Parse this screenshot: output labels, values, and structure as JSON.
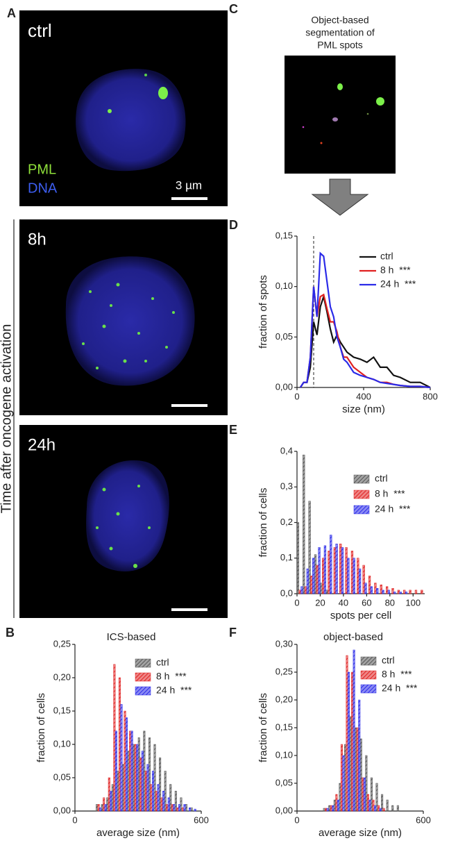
{
  "panel_letters": [
    "A",
    "B",
    "C",
    "D",
    "E",
    "F"
  ],
  "images": [
    {
      "label": "ctrl"
    },
    {
      "label": "8h"
    },
    {
      "label": "24h"
    }
  ],
  "stain_labels": [
    "PML",
    "DNA"
  ],
  "scale_bar": "3 µm",
  "side_label": "Time after oncogene activation",
  "segmentation_caption": [
    "Object-based",
    "segmentation of",
    "PML spots"
  ],
  "chart_data": [
    {
      "type": "line",
      "ylabel": "fraction of spots",
      "xlabel": "size (nm)",
      "x": [
        20,
        40,
        60,
        80,
        100,
        120,
        140,
        160,
        180,
        200,
        220,
        240,
        260,
        280,
        300,
        340,
        380,
        420,
        460,
        500,
        540,
        580,
        620,
        680,
        740,
        800
      ],
      "xlim": [
        0,
        800
      ],
      "xticks": [
        0,
        400,
        800
      ],
      "ylim": [
        0,
        0.15
      ],
      "yticks": [
        {
          "value": 0,
          "label": "0,00"
        },
        {
          "value": 0.05,
          "label": "0,05"
        },
        {
          "value": 0.1,
          "label": "0,10"
        },
        {
          "value": 0.15,
          "label": "0,15"
        }
      ],
      "reference_line_x": 100,
      "series": [
        {
          "name": "ctrl",
          "color": "#111111",
          "values": [
            0,
            0.005,
            0.005,
            0.02,
            0.065,
            0.052,
            0.08,
            0.09,
            0.075,
            0.058,
            0.045,
            0.052,
            0.045,
            0.04,
            0.035,
            0.03,
            0.028,
            0.025,
            0.03,
            0.02,
            0.02,
            0.012,
            0.01,
            0.005,
            0.005,
            0
          ]
        },
        {
          "name": "8 h  ***",
          "color": "#e02020",
          "values": [
            0,
            0.005,
            0.005,
            0.03,
            0.1,
            0.07,
            0.09,
            0.092,
            0.078,
            0.065,
            0.065,
            0.055,
            0.04,
            0.03,
            0.03,
            0.02,
            0.015,
            0.01,
            0.008,
            0.005,
            0.005,
            0.003,
            0.002,
            0.001,
            0.001,
            0
          ]
        },
        {
          "name": "24 h  ***",
          "color": "#2a2ae8",
          "values": [
            0,
            0.005,
            0.005,
            0.03,
            0.1,
            0.07,
            0.133,
            0.13,
            0.105,
            0.08,
            0.07,
            0.05,
            0.04,
            0.028,
            0.025,
            0.015,
            0.012,
            0.01,
            0.008,
            0.005,
            0.004,
            0.003,
            0.002,
            0.001,
            0.001,
            0
          ]
        }
      ]
    },
    {
      "type": "histogram",
      "ylabel": "fraction of cells",
      "xlabel": "spots per cell",
      "bins": [
        0,
        5,
        10,
        15,
        20,
        25,
        30,
        35,
        40,
        45,
        50,
        55,
        60,
        65,
        70,
        75,
        80,
        85,
        90,
        95,
        100,
        105,
        110
      ],
      "xlim": [
        0,
        110
      ],
      "xticks": [
        0,
        20,
        40,
        60,
        80,
        100
      ],
      "ylim": [
        0,
        0.4
      ],
      "yticks": [
        {
          "value": 0,
          "label": "0,0"
        },
        {
          "value": 0.1,
          "label": "0,1"
        },
        {
          "value": 0.2,
          "label": "0,2"
        },
        {
          "value": 0.3,
          "label": "0,3"
        },
        {
          "value": 0.4,
          "label": "0,4"
        }
      ],
      "series": [
        {
          "name": "ctrl",
          "color": "#555555",
          "values": [
            0.2,
            0.39,
            0.26,
            0.11,
            0.03,
            0.01,
            0,
            0,
            0,
            0,
            0,
            0,
            0,
            0,
            0,
            0,
            0,
            0,
            0,
            0,
            0,
            0
          ]
        },
        {
          "name": "8 h  ***",
          "color": "#e02020",
          "values": [
            0.01,
            0.02,
            0.05,
            0.08,
            0.1,
            0.12,
            0.13,
            0.14,
            0.13,
            0.12,
            0.1,
            0.08,
            0.05,
            0.03,
            0.025,
            0.02,
            0.015,
            0.01,
            0.01,
            0.01,
            0.01,
            0.01
          ]
        },
        {
          "name": "24 h  ***",
          "color": "#2a2ae8",
          "values": [
            0.02,
            0.07,
            0.1,
            0.13,
            0.135,
            0.165,
            0.14,
            0.13,
            0.1,
            0.1,
            0.07,
            0.03,
            0.02,
            0.015,
            0.01,
            0.01,
            0.005,
            0.005,
            0.005,
            0,
            0,
            0
          ]
        }
      ]
    },
    {
      "type": "histogram",
      "title": "ICS-based",
      "ylabel": "fraction of cells",
      "xlabel": "average size (nm)",
      "bins": [
        100,
        125,
        150,
        175,
        200,
        225,
        250,
        275,
        300,
        325,
        350,
        375,
        400,
        425,
        450,
        475,
        500,
        525,
        550,
        575,
        600
      ],
      "xlim": [
        0,
        600
      ],
      "xticks": [
        0,
        600
      ],
      "ylim": [
        0,
        0.25
      ],
      "yticks": [
        {
          "value": 0,
          "label": "0,00"
        },
        {
          "value": 0.05,
          "label": "0,05"
        },
        {
          "value": 0.1,
          "label": "0,10"
        },
        {
          "value": 0.15,
          "label": "0,15"
        },
        {
          "value": 0.2,
          "label": "0,20"
        },
        {
          "value": 0.25,
          "label": "0,25"
        }
      ],
      "series": [
        {
          "name": "ctrl",
          "color": "#555555",
          "values": [
            0.01,
            0.01,
            0.02,
            0.04,
            0.06,
            0.07,
            0.09,
            0.1,
            0.11,
            0.12,
            0.11,
            0.1,
            0.08,
            0.06,
            0.04,
            0.03,
            0.02,
            0.01,
            0.005,
            0
          ]
        },
        {
          "name": "8 h  ***",
          "color": "#e02020",
          "values": [
            0.01,
            0.02,
            0.05,
            0.22,
            0.2,
            0.15,
            0.12,
            0.1,
            0.08,
            0.06,
            0.04,
            0.03,
            0.02,
            0.01,
            0.01,
            0.005,
            0.005,
            0,
            0,
            0
          ]
        },
        {
          "name": "24 h  ***",
          "color": "#2a2ae8",
          "values": [
            0.005,
            0.01,
            0.03,
            0.12,
            0.16,
            0.14,
            0.12,
            0.1,
            0.09,
            0.07,
            0.06,
            0.04,
            0.03,
            0.02,
            0.01,
            0.01,
            0.01,
            0.005,
            0.003,
            0
          ]
        }
      ]
    },
    {
      "type": "histogram",
      "title": "object-based",
      "ylabel": "fraction of cells",
      "xlabel": "average size (nm)",
      "bins": [
        100,
        125,
        150,
        175,
        200,
        225,
        250,
        275,
        300,
        325,
        350,
        375,
        400,
        425,
        450,
        475,
        500,
        525,
        550,
        575,
        600
      ],
      "xlim": [
        0,
        600
      ],
      "xticks": [
        0,
        600
      ],
      "ylim": [
        0,
        0.3
      ],
      "yticks": [
        {
          "value": 0,
          "label": "0,00"
        },
        {
          "value": 0.05,
          "label": "0,05"
        },
        {
          "value": 0.1,
          "label": "0,10"
        },
        {
          "value": 0.15,
          "label": "0,15"
        },
        {
          "value": 0.2,
          "label": "0,20"
        },
        {
          "value": 0.25,
          "label": "0,25"
        },
        {
          "value": 0.3,
          "label": "0,30"
        }
      ],
      "series": [
        {
          "name": "ctrl",
          "color": "#555555",
          "values": [
            0,
            0.005,
            0.01,
            0.02,
            0.05,
            0.12,
            0.17,
            0.15,
            0.13,
            0.1,
            0.06,
            0.05,
            0.03,
            0.02,
            0.01,
            0.01,
            0,
            0,
            0,
            0
          ]
        },
        {
          "name": "8 h  ***",
          "color": "#e02020",
          "values": [
            0,
            0.005,
            0.01,
            0.03,
            0.12,
            0.28,
            0.25,
            0.15,
            0.06,
            0.03,
            0.02,
            0.01,
            0.005,
            0,
            0,
            0,
            0,
            0,
            0,
            0
          ]
        },
        {
          "name": "24 h  ***",
          "color": "#2a2ae8",
          "values": [
            0,
            0.005,
            0.01,
            0.02,
            0.1,
            0.25,
            0.29,
            0.2,
            0.06,
            0.02,
            0.01,
            0.005,
            0,
            0,
            0,
            0,
            0,
            0,
            0,
            0
          ]
        }
      ]
    }
  ]
}
